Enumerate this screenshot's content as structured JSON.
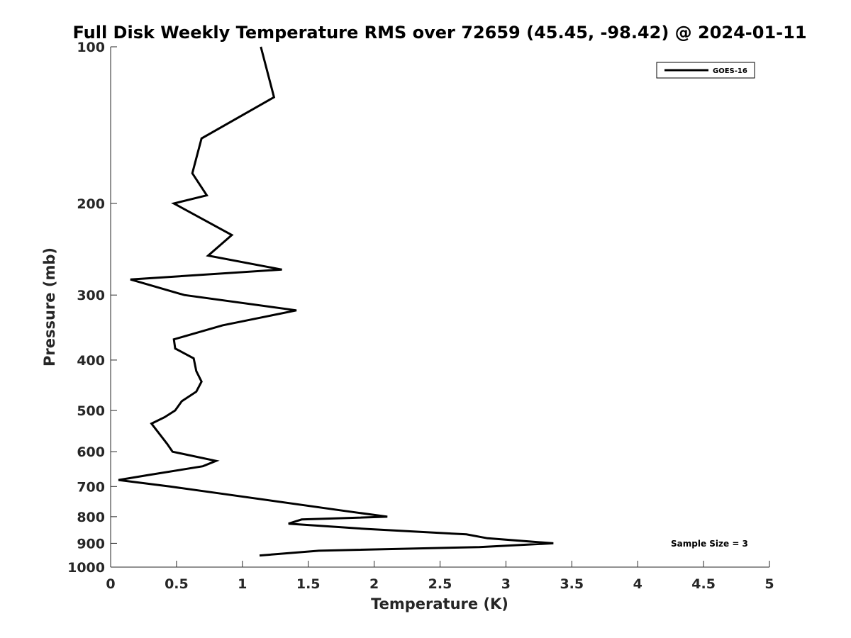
{
  "chart_data": {
    "type": "line",
    "title": "Full Disk Weekly Temperature RMS over 72659 (45.45, -98.42) @ 2024-01-11",
    "xlabel": "Temperature (K)",
    "ylabel": "Pressure (mb)",
    "xlim": [
      0,
      5
    ],
    "ylim": [
      100,
      1000
    ],
    "y_scale": "log",
    "y_reversed": true,
    "x_ticks": [
      0,
      0.5,
      1,
      1.5,
      2,
      2.5,
      3,
      3.5,
      4,
      4.5,
      5
    ],
    "x_tick_labels": [
      "0",
      "0.5",
      "1",
      "1.5",
      "2",
      "2.5",
      "3",
      "3.5",
      "4",
      "4.5",
      "5"
    ],
    "y_ticks": [
      100,
      200,
      300,
      400,
      500,
      600,
      700,
      800,
      900,
      1000
    ],
    "y_tick_labels": [
      "100",
      "200",
      "300",
      "400",
      "500",
      "600",
      "700",
      "800",
      "900",
      "1000"
    ],
    "grid": false,
    "legend_position": "top-right",
    "series": [
      {
        "name": "GOES-16",
        "color": "#000000",
        "points": [
          [
            1.14,
            100
          ],
          [
            1.24,
            125
          ],
          [
            0.69,
            150
          ],
          [
            0.62,
            175
          ],
          [
            0.73,
            193
          ],
          [
            0.48,
            200
          ],
          [
            0.92,
            230
          ],
          [
            0.74,
            252
          ],
          [
            1.3,
            268
          ],
          [
            0.15,
            280
          ],
          [
            0.56,
            300
          ],
          [
            1.41,
            321
          ],
          [
            0.85,
            343
          ],
          [
            0.48,
            365
          ],
          [
            0.49,
            380
          ],
          [
            0.63,
            397
          ],
          [
            0.65,
            420
          ],
          [
            0.69,
            440
          ],
          [
            0.65,
            460
          ],
          [
            0.54,
            480
          ],
          [
            0.49,
            500
          ],
          [
            0.41,
            515
          ],
          [
            0.31,
            530
          ],
          [
            0.43,
            580
          ],
          [
            0.47,
            600
          ],
          [
            0.8,
            625
          ],
          [
            0.7,
            640
          ],
          [
            0.29,
            665
          ],
          [
            0.06,
            680
          ],
          [
            0.45,
            700
          ],
          [
            0.8,
            720
          ],
          [
            1.78,
            780
          ],
          [
            2.1,
            800
          ],
          [
            1.45,
            810
          ],
          [
            1.35,
            825
          ],
          [
            1.95,
            845
          ],
          [
            2.7,
            865
          ],
          [
            2.86,
            880
          ],
          [
            3.36,
            900
          ],
          [
            2.8,
            915
          ],
          [
            1.58,
            930
          ],
          [
            1.13,
            950
          ]
        ]
      }
    ],
    "annotations": [
      {
        "text": "Sample Size = 3",
        "position": "bottom-right"
      }
    ]
  }
}
